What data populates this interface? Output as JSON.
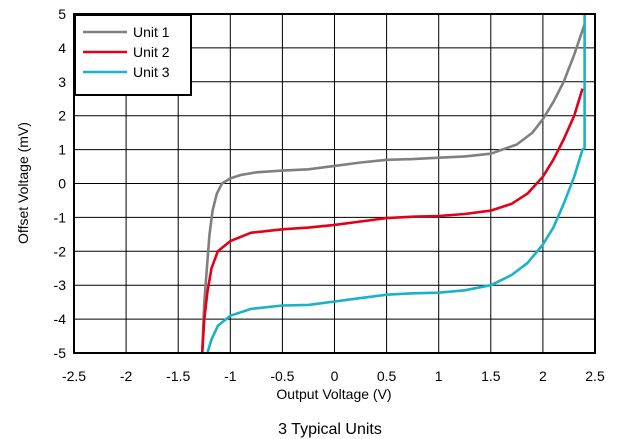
{
  "chart_data": {
    "type": "line",
    "caption": "3 Typical Units",
    "xlabel": "Output Voltage (V)",
    "ylabel": "Offset Voltage (mV)",
    "xlim": [
      -2.5,
      2.5
    ],
    "ylim": [
      -5,
      5
    ],
    "xticks": [
      -2.5,
      -2,
      -1.5,
      -1,
      -0.5,
      0,
      0.5,
      1,
      1.5,
      2,
      2.5
    ],
    "yticks": [
      -5,
      -4,
      -3,
      -2,
      -1,
      0,
      1,
      2,
      3,
      4,
      5
    ],
    "grid": true,
    "legend_position": "top-left",
    "series": [
      {
        "name": "Unit 1",
        "color": "#808080",
        "points": [
          [
            -1.27,
            -5
          ],
          [
            -1.25,
            -3.5
          ],
          [
            -1.22,
            -2.3
          ],
          [
            -1.2,
            -1.5
          ],
          [
            -1.17,
            -0.8
          ],
          [
            -1.13,
            -0.3
          ],
          [
            -1.08,
            0
          ],
          [
            -1.0,
            0.15
          ],
          [
            -0.9,
            0.25
          ],
          [
            -0.75,
            0.33
          ],
          [
            -0.5,
            0.38
          ],
          [
            -0.25,
            0.42
          ],
          [
            0,
            0.52
          ],
          [
            0.25,
            0.62
          ],
          [
            0.5,
            0.7
          ],
          [
            0.75,
            0.72
          ],
          [
            1.0,
            0.76
          ],
          [
            1.25,
            0.8
          ],
          [
            1.5,
            0.88
          ],
          [
            1.75,
            1.15
          ],
          [
            1.9,
            1.5
          ],
          [
            2.0,
            1.9
          ],
          [
            2.1,
            2.4
          ],
          [
            2.2,
            3.0
          ],
          [
            2.3,
            3.8
          ],
          [
            2.4,
            4.7
          ]
        ]
      },
      {
        "name": "Unit 2",
        "color": "#e3001b",
        "points": [
          [
            -1.27,
            -5
          ],
          [
            -1.25,
            -4
          ],
          [
            -1.22,
            -3.2
          ],
          [
            -1.18,
            -2.5
          ],
          [
            -1.12,
            -2.0
          ],
          [
            -1.0,
            -1.7
          ],
          [
            -0.8,
            -1.45
          ],
          [
            -0.5,
            -1.35
          ],
          [
            -0.25,
            -1.3
          ],
          [
            0,
            -1.22
          ],
          [
            0.25,
            -1.12
          ],
          [
            0.5,
            -1.02
          ],
          [
            0.75,
            -0.98
          ],
          [
            1.0,
            -0.96
          ],
          [
            1.25,
            -0.9
          ],
          [
            1.5,
            -0.8
          ],
          [
            1.7,
            -0.6
          ],
          [
            1.85,
            -0.3
          ],
          [
            2.0,
            0.2
          ],
          [
            2.1,
            0.7
          ],
          [
            2.2,
            1.3
          ],
          [
            2.3,
            2.0
          ],
          [
            2.38,
            2.8
          ]
        ]
      },
      {
        "name": "Unit 3",
        "color": "#1ab2c8",
        "points": [
          [
            -1.22,
            -5
          ],
          [
            -1.18,
            -4.6
          ],
          [
            -1.12,
            -4.2
          ],
          [
            -1.0,
            -3.9
          ],
          [
            -0.8,
            -3.7
          ],
          [
            -0.5,
            -3.6
          ],
          [
            -0.25,
            -3.58
          ],
          [
            0,
            -3.48
          ],
          [
            0.25,
            -3.38
          ],
          [
            0.5,
            -3.28
          ],
          [
            0.75,
            -3.24
          ],
          [
            1.0,
            -3.22
          ],
          [
            1.25,
            -3.15
          ],
          [
            1.5,
            -3.0
          ],
          [
            1.7,
            -2.7
          ],
          [
            1.85,
            -2.35
          ],
          [
            2.0,
            -1.8
          ],
          [
            2.1,
            -1.3
          ],
          [
            2.2,
            -0.6
          ],
          [
            2.3,
            0.2
          ],
          [
            2.38,
            1.0
          ],
          [
            2.4,
            1.05
          ],
          [
            2.4,
            5
          ]
        ]
      }
    ]
  }
}
